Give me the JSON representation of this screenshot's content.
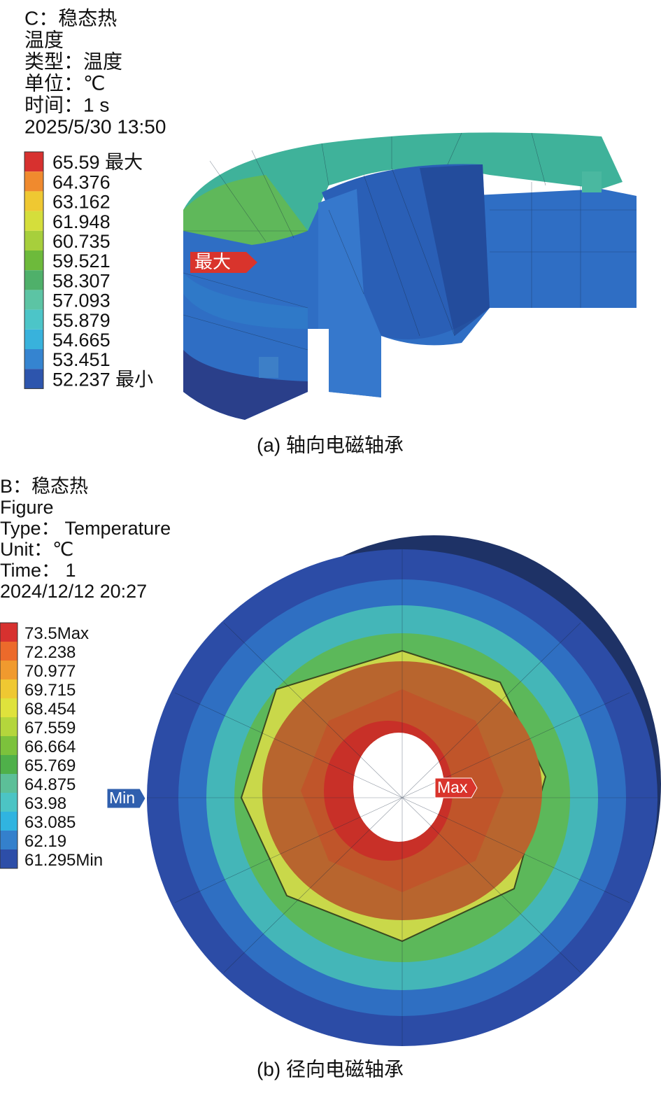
{
  "panel_a": {
    "header": [
      "C：稳态热",
      "温度",
      "类型：温度",
      "单位：℃",
      "时间：1 s",
      "2025/5/30 13:50"
    ],
    "legend": [
      {
        "label": "65.59 最大",
        "color": "#d7312f"
      },
      {
        "label": "64.376",
        "color": "#f08a2e"
      },
      {
        "label": "63.162",
        "color": "#efc832"
      },
      {
        "label": "61.948",
        "color": "#d5de3b"
      },
      {
        "label": "60.735",
        "color": "#a7cf3c"
      },
      {
        "label": "59.521",
        "color": "#6dba3b"
      },
      {
        "label": "58.307",
        "color": "#4fb06a"
      },
      {
        "label": "57.093",
        "color": "#5cc4a4"
      },
      {
        "label": "55.879",
        "color": "#4cc5c8"
      },
      {
        "label": "54.665",
        "color": "#38b2dc"
      },
      {
        "label": "53.451",
        "color": "#3584d0"
      },
      {
        "label": "52.237 最小",
        "color": "#2d55ad"
      }
    ],
    "marker": "最大",
    "caption": "(a) 轴向电磁轴承"
  },
  "panel_b": {
    "header": [
      "B：稳态热",
      "Figure",
      "Type： Temperature",
      "Unit：℃",
      "Time： 1",
      "2024/12/12 20:27"
    ],
    "legend": [
      {
        "label": "73.5Max",
        "color": "#d7312f"
      },
      {
        "label": "72.238",
        "color": "#ec6a2b"
      },
      {
        "label": "70.977",
        "color": "#f09a2e"
      },
      {
        "label": "69.715",
        "color": "#efc832"
      },
      {
        "label": "68.454",
        "color": "#dfe23c"
      },
      {
        "label": "67.559",
        "color": "#b4d63c"
      },
      {
        "label": "66.664",
        "color": "#7cc23c"
      },
      {
        "label": "65.769",
        "color": "#4fb04a"
      },
      {
        "label": "64.875",
        "color": "#5cbf98"
      },
      {
        "label": "63.98",
        "color": "#4cc4c4"
      },
      {
        "label": "63.085",
        "color": "#30b4e0"
      },
      {
        "label": "62.19",
        "color": "#3480cc"
      },
      {
        "label": "61.295Min",
        "color": "#2d4ea8"
      }
    ],
    "min_marker": "Min",
    "max_marker": "Max",
    "caption": "(b) 径向电磁轴承"
  }
}
